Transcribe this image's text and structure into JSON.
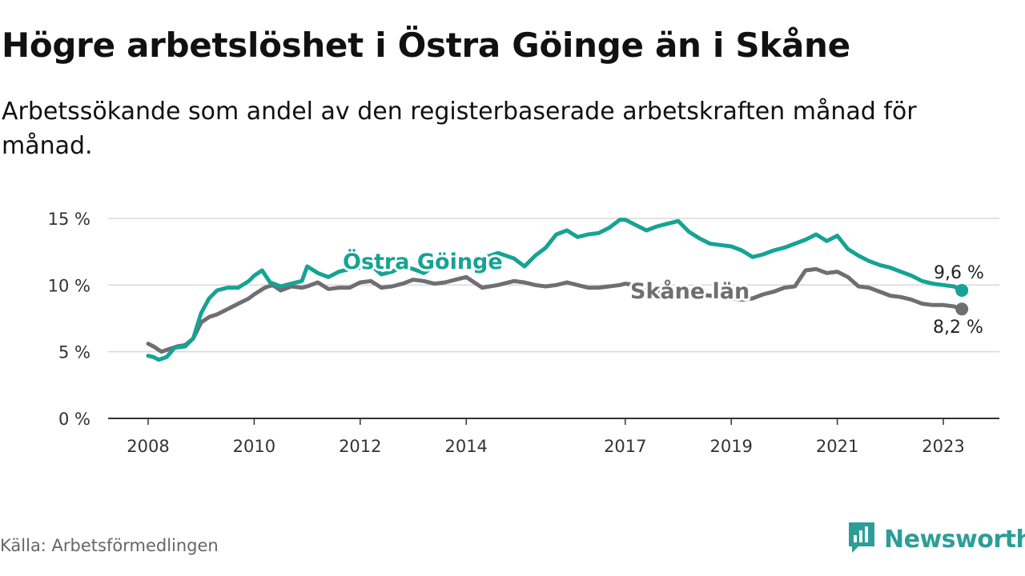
{
  "title": "Högre arbetslöshet i Östra Göinge än i Skåne",
  "subtitle": "Arbetssökande som andel av den registerbaserade arbetskraften månad för månad.",
  "source": "Källa: Arbetsförmedlingen",
  "brand": {
    "name": "Newsworthy",
    "icon": "newsworthy-logo-icon",
    "color": "#2c9e97"
  },
  "chart_data": {
    "type": "line",
    "title": "Högre arbetslöshet i Östra Göinge än i Skåne",
    "xlabel": "",
    "ylabel": "",
    "ylim": [
      0,
      16
    ],
    "xlim": [
      2008.0,
      2023.5
    ],
    "y_ticks": [
      0,
      5,
      10,
      15
    ],
    "y_tick_labels": [
      "0 %",
      "5 %",
      "10 %",
      "15 %"
    ],
    "x_ticks": [
      2008,
      2010,
      2012,
      2014,
      2017,
      2019,
      2021,
      2023
    ],
    "x_tick_labels": [
      "2008",
      "2010",
      "2012",
      "2014",
      "2017",
      "2019",
      "2021",
      "2023"
    ],
    "grid": true,
    "series": [
      {
        "name": "Östra Göinge",
        "color": "#16a394",
        "end_label": "9,6 %",
        "x": [
          2008.0,
          2008.1,
          2008.2,
          2008.35,
          2008.5,
          2008.7,
          2008.85,
          2009.0,
          2009.15,
          2009.3,
          2009.5,
          2009.7,
          2009.9,
          2010.0,
          2010.15,
          2010.3,
          2010.5,
          2010.7,
          2010.9,
          2011.0,
          2011.2,
          2011.4,
          2011.6,
          2011.8,
          2012.0,
          2012.2,
          2012.4,
          2012.6,
          2012.8,
          2013.0,
          2013.2,
          2013.4,
          2013.6,
          2013.8,
          2014.0,
          2014.3,
          2014.6,
          2014.9,
          2015.1,
          2015.3,
          2015.5,
          2015.7,
          2015.9,
          2016.1,
          2016.3,
          2016.5,
          2016.7,
          2016.9,
          2017.0,
          2017.2,
          2017.4,
          2017.6,
          2017.8,
          2018.0,
          2018.2,
          2018.4,
          2018.6,
          2018.8,
          2019.0,
          2019.2,
          2019.4,
          2019.6,
          2019.8,
          2020.0,
          2020.2,
          2020.4,
          2020.6,
          2020.8,
          2021.0,
          2021.2,
          2021.4,
          2021.6,
          2021.8,
          2022.0,
          2022.2,
          2022.4,
          2022.6,
          2022.8,
          2023.0,
          2023.2,
          2023.35
        ],
        "values": [
          4.7,
          4.6,
          4.4,
          4.6,
          5.3,
          5.4,
          6.0,
          7.9,
          9.0,
          9.6,
          9.8,
          9.8,
          10.3,
          10.7,
          11.1,
          10.2,
          9.9,
          10.1,
          10.3,
          11.4,
          10.9,
          10.6,
          11.0,
          11.2,
          11.3,
          11.5,
          10.8,
          11.0,
          11.4,
          11.2,
          10.9,
          11.4,
          11.3,
          12.1,
          11.7,
          12.0,
          12.4,
          12.0,
          11.4,
          12.2,
          12.8,
          13.8,
          14.1,
          13.6,
          13.8,
          13.9,
          14.3,
          14.9,
          14.9,
          14.5,
          14.1,
          14.4,
          14.6,
          14.8,
          14.0,
          13.5,
          13.1,
          13.0,
          12.9,
          12.6,
          12.1,
          12.3,
          12.6,
          12.8,
          13.1,
          13.4,
          13.8,
          13.3,
          13.7,
          12.7,
          12.2,
          11.8,
          11.5,
          11.3,
          11.0,
          10.7,
          10.3,
          10.1,
          10.0,
          9.9,
          9.6
        ]
      },
      {
        "name": "Skåne län",
        "color": "#6e6e73",
        "end_label": "8,2 %",
        "x": [
          2008.0,
          2008.1,
          2008.25,
          2008.4,
          2008.55,
          2008.7,
          2008.85,
          2009.0,
          2009.15,
          2009.3,
          2009.5,
          2009.7,
          2009.9,
          2010.0,
          2010.2,
          2010.35,
          2010.5,
          2010.7,
          2010.9,
          2011.0,
          2011.2,
          2011.4,
          2011.6,
          2011.8,
          2012.0,
          2012.2,
          2012.4,
          2012.6,
          2012.8,
          2013.0,
          2013.2,
          2013.4,
          2013.6,
          2013.8,
          2014.0,
          2014.3,
          2014.6,
          2014.9,
          2015.1,
          2015.3,
          2015.5,
          2015.7,
          2015.9,
          2016.1,
          2016.3,
          2016.5,
          2016.7,
          2016.9,
          2017.0,
          2017.2,
          2017.4,
          2017.6,
          2017.8,
          2018.0,
          2018.2,
          2018.4,
          2018.6,
          2018.8,
          2019.0,
          2019.2,
          2019.4,
          2019.6,
          2019.8,
          2020.0,
          2020.2,
          2020.4,
          2020.6,
          2020.8,
          2021.0,
          2021.2,
          2021.4,
          2021.6,
          2021.8,
          2022.0,
          2022.2,
          2022.4,
          2022.6,
          2022.8,
          2023.0,
          2023.2,
          2023.35
        ],
        "values": [
          5.6,
          5.4,
          5.0,
          5.2,
          5.4,
          5.5,
          6.0,
          7.2,
          7.6,
          7.8,
          8.2,
          8.6,
          9.0,
          9.3,
          9.8,
          10.0,
          9.6,
          9.9,
          9.8,
          9.9,
          10.2,
          9.7,
          9.8,
          9.8,
          10.2,
          10.3,
          9.8,
          9.9,
          10.1,
          10.4,
          10.3,
          10.1,
          10.2,
          10.4,
          10.6,
          9.8,
          10.0,
          10.3,
          10.2,
          10.0,
          9.9,
          10.0,
          10.2,
          10.0,
          9.8,
          9.8,
          9.9,
          10.0,
          10.1,
          10.0,
          9.8,
          9.6,
          9.5,
          9.4,
          9.4,
          9.3,
          9.2,
          9.1,
          9.0,
          8.9,
          9.0,
          9.3,
          9.5,
          9.8,
          9.9,
          11.1,
          11.2,
          10.9,
          11.0,
          10.6,
          9.9,
          9.8,
          9.5,
          9.2,
          9.1,
          8.9,
          8.6,
          8.5,
          8.5,
          8.4,
          8.2
        ]
      }
    ]
  }
}
